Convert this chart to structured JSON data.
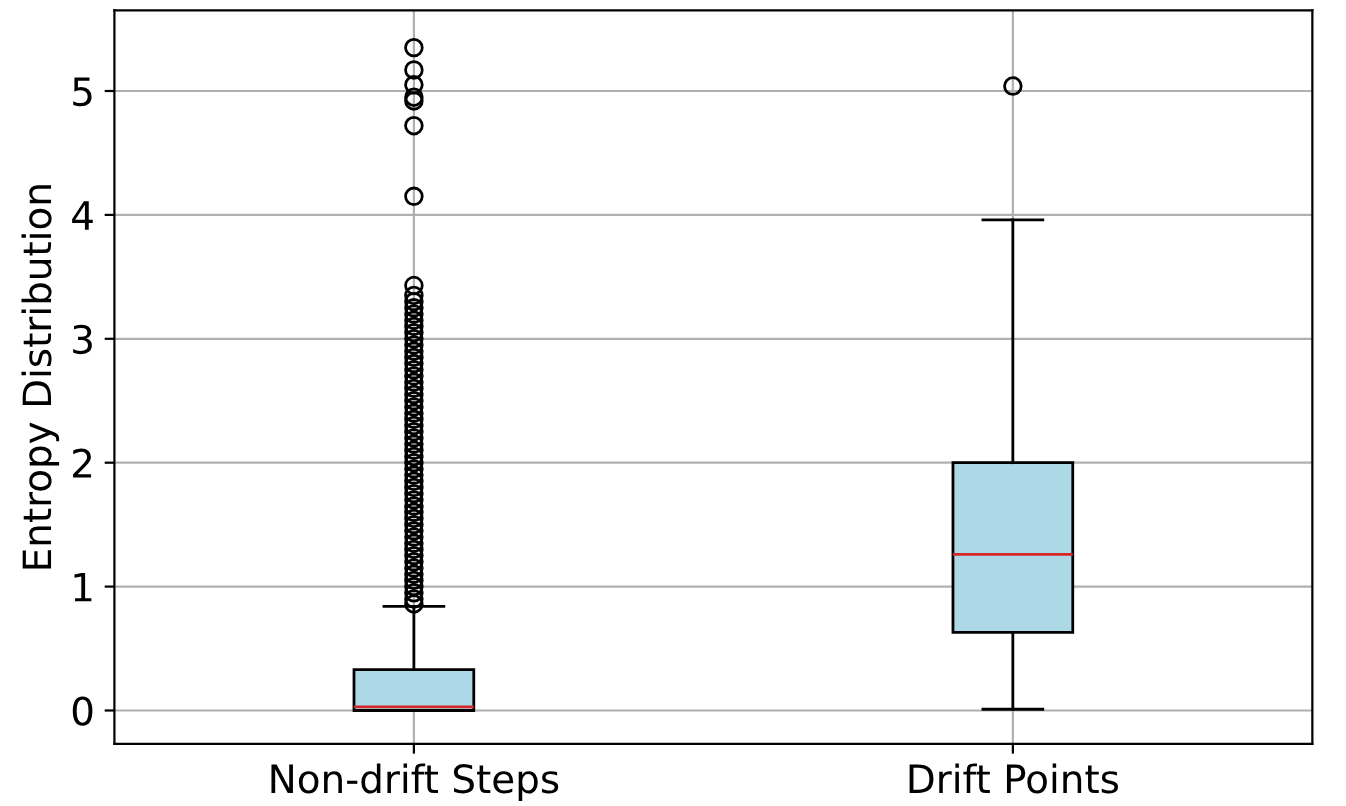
{
  "chart_data": {
    "type": "box",
    "ylabel": "Entropy Distribution",
    "categories": [
      "Non-drift Steps",
      "Drift Points"
    ],
    "ylim": [
      -0.27,
      5.65
    ],
    "yticks": [
      0,
      1,
      2,
      3,
      4,
      5
    ],
    "grid": true,
    "color": "#add8e6",
    "boxes": [
      {
        "low": 0,
        "q1": 0,
        "median": 0.03,
        "q3": 0.33,
        "high": 0.84,
        "outliers": [
          0.86,
          0.9,
          0.95,
          1.0,
          1.05,
          1.1,
          1.15,
          1.2,
          1.25,
          1.3,
          1.35,
          1.4,
          1.45,
          1.5,
          1.55,
          1.6,
          1.65,
          1.7,
          1.75,
          1.8,
          1.85,
          1.9,
          1.95,
          2.0,
          2.05,
          2.1,
          2.15,
          2.2,
          2.25,
          2.3,
          2.35,
          2.4,
          2.45,
          2.5,
          2.55,
          2.6,
          2.65,
          2.7,
          2.75,
          2.8,
          2.85,
          2.9,
          2.95,
          3.0,
          3.05,
          3.1,
          3.15,
          3.2,
          3.25,
          3.3,
          3.35,
          3.43,
          4.15,
          4.72,
          4.92,
          4.95,
          5.05,
          5.17,
          5.35
        ]
      },
      {
        "low": 0.01,
        "q1": 0.63,
        "median": 1.26,
        "q3": 2.0,
        "high": 3.96,
        "outliers": [
          5.04
        ]
      }
    ]
  }
}
